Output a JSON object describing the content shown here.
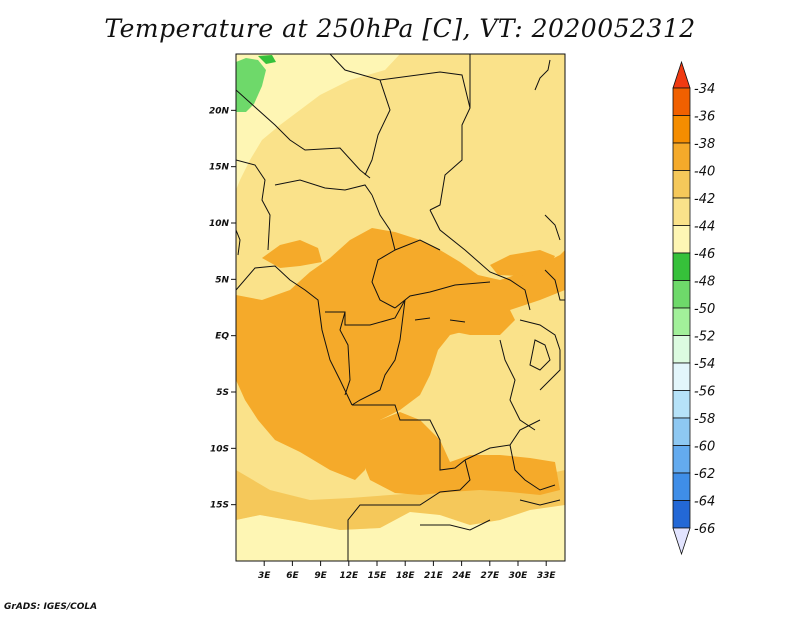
{
  "title": "Temperature at 250hPa [C], VT: 2020052312",
  "credit": "GrADS: IGES/COLA",
  "map": {
    "lon_range": [
      0,
      35
    ],
    "lat_range": [
      -20,
      25
    ],
    "lon_ticks": [
      {
        "value": 3,
        "label": "3E"
      },
      {
        "value": 6,
        "label": "6E"
      },
      {
        "value": 9,
        "label": "9E"
      },
      {
        "value": 12,
        "label": "12E"
      },
      {
        "value": 15,
        "label": "15E"
      },
      {
        "value": 18,
        "label": "18E"
      },
      {
        "value": 21,
        "label": "21E"
      },
      {
        "value": 24,
        "label": "24E"
      },
      {
        "value": 27,
        "label": "27E"
      },
      {
        "value": 30,
        "label": "30E"
      },
      {
        "value": 33,
        "label": "33E"
      }
    ],
    "lat_ticks": [
      {
        "value": 20,
        "label": "20N"
      },
      {
        "value": 15,
        "label": "15N"
      },
      {
        "value": 10,
        "label": "10N"
      },
      {
        "value": 5,
        "label": "5N"
      },
      {
        "value": 0,
        "label": "EQ"
      },
      {
        "value": -5,
        "label": "5S"
      },
      {
        "value": -10,
        "label": "10S"
      },
      {
        "value": -15,
        "label": "15S"
      }
    ]
  },
  "colorbar": {
    "levels": [
      {
        "label": "-34",
        "color": "#f06000"
      },
      {
        "label": "-36",
        "color": "#f58d00"
      },
      {
        "label": "-38",
        "color": "#f5aa2a"
      },
      {
        "label": "-40",
        "color": "#f5c85a"
      },
      {
        "label": "-42",
        "color": "#fae28a"
      },
      {
        "label": "-44",
        "color": "#fef6b4"
      },
      {
        "label": "-46",
        "color": "#36c13a"
      },
      {
        "label": "-48",
        "color": "#6ed96a"
      },
      {
        "label": "-50",
        "color": "#a2f09a"
      },
      {
        "label": "-52",
        "color": "#dcfbe0"
      },
      {
        "label": "-54",
        "color": "#e3f6fb"
      },
      {
        "label": "-56",
        "color": "#b6e2f8"
      },
      {
        "label": "-58",
        "color": "#8ec8f2"
      },
      {
        "label": "-60",
        "color": "#64abef"
      },
      {
        "label": "-62",
        "color": "#3f8ee8"
      },
      {
        "label": "-64",
        "color": "#2368d6"
      },
      {
        "label": "-66",
        "color": "#1542b6"
      }
    ],
    "top_color": "#f03a12",
    "bottom_color": "#e2e4ff",
    "second_bottom_color": "#0c1678"
  },
  "field_colors": {
    "base": "#fae28a",
    "light": "#fef6b4",
    "mid": "#f5c85a",
    "warm": "#f5aa2a",
    "green": "#36c13a",
    "green_light": "#6ed96a"
  }
}
